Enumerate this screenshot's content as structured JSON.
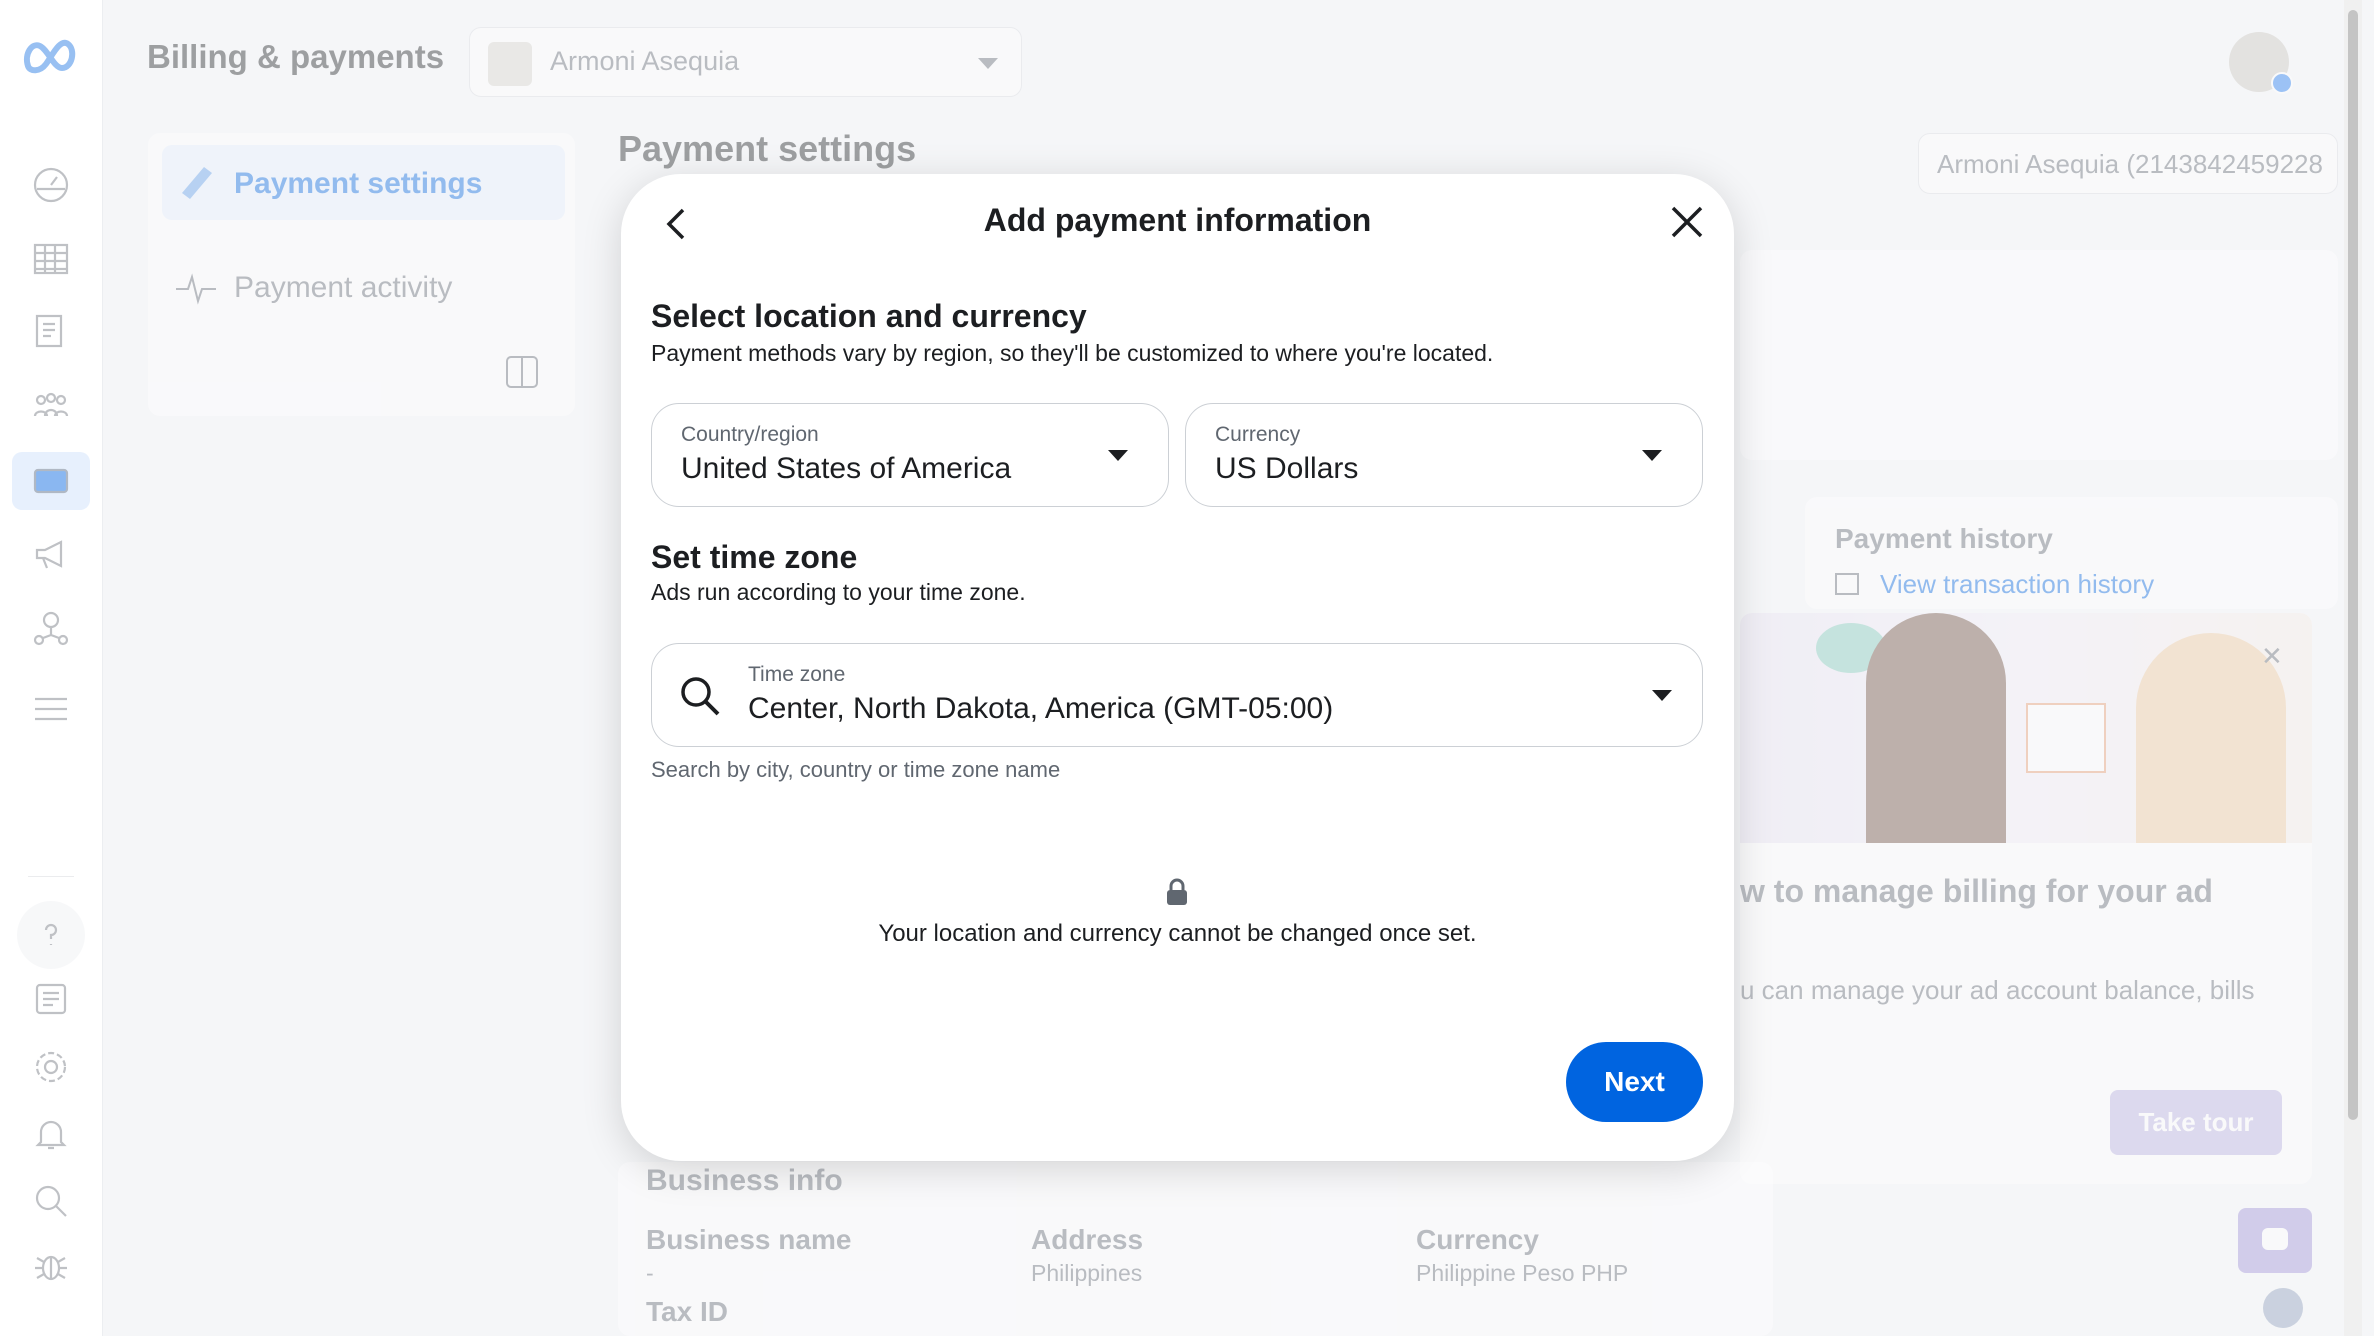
{
  "header": {
    "title": "Billing & payments",
    "account_selector": "Armoni Asequia"
  },
  "left_nav": {
    "items": [
      {
        "label": "Payment settings",
        "active": true
      },
      {
        "label": "Payment activity",
        "active": false
      }
    ]
  },
  "main": {
    "title": "Payment settings",
    "account_id_box": "Armoni Asequia (2143842459228",
    "payment_history": {
      "title": "Payment history",
      "link": "View transaction history"
    },
    "promo": {
      "title": "w to manage billing for your ad",
      "body": "u can manage your ad account balance, bills",
      "button": "Take tour"
    },
    "business_info": {
      "title": "Business info",
      "fields": [
        {
          "label": "Business name",
          "value": "-"
        },
        {
          "label": "Address",
          "value": "Philippines"
        },
        {
          "label": "Currency",
          "value": "Philippine Peso PHP"
        },
        {
          "label": "Tax ID",
          "value": ""
        }
      ]
    }
  },
  "modal": {
    "title": "Add payment information",
    "section1": {
      "title": "Select location and currency",
      "desc": "Payment methods vary by region, so they'll be customized to where you're located."
    },
    "country": {
      "label": "Country/region",
      "value": "United States of America"
    },
    "currency": {
      "label": "Currency",
      "value": "US Dollars"
    },
    "section2": {
      "title": "Set time zone",
      "desc": "Ads run according to your time zone."
    },
    "timezone": {
      "label": "Time zone",
      "value": "Center, North Dakota, America (GMT-05:00)",
      "helper": "Search by city, country or time zone name"
    },
    "notice": "Your location and currency cannot be changed once set.",
    "next_label": "Next"
  },
  "colors": {
    "primary": "#0064e0",
    "text": "#1c1e21",
    "secondary_text": "#606770"
  }
}
